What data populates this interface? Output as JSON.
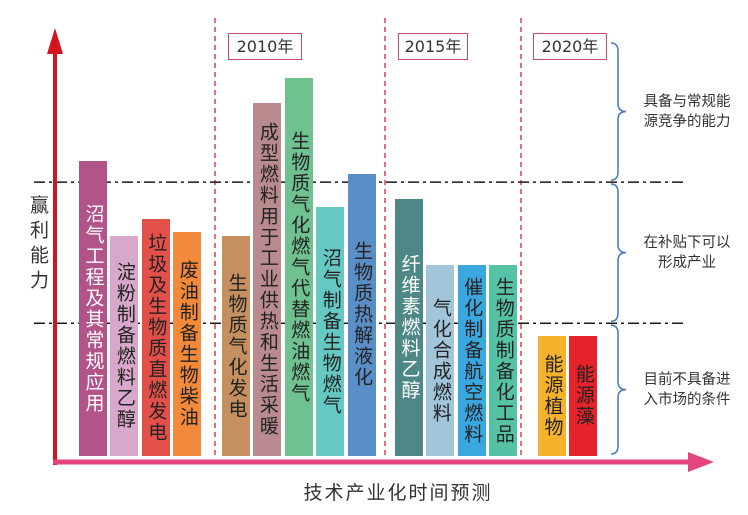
{
  "chart_data": {
    "type": "bar",
    "xlabel": "技术产业化时间预测",
    "ylabel": "赢利能力",
    "ylim": [
      0,
      1
    ],
    "grid": false,
    "periods": [
      {
        "bars": [
          {
            "label": "沼气工程及其常规应用",
            "value": 0.71,
            "color": "#b2538a",
            "label_color": "#ffffff"
          },
          {
            "label": "淀粉制备燃料乙醇",
            "value": 0.53,
            "color": "#d7a8cb",
            "label_color": "#222222"
          },
          {
            "label": "垃圾及生物质直燃发电",
            "value": 0.57,
            "color": "#e3504a",
            "label_color": "#222222"
          },
          {
            "label": "废油制备生物柴油",
            "value": 0.54,
            "color": "#f3893a",
            "label_color": "#222222"
          }
        ]
      },
      {
        "label": "2010年",
        "bars": [
          {
            "label": "生物质气化发电",
            "value": 0.53,
            "color": "#c58f60",
            "label_color": "#222222"
          },
          {
            "label": "成型燃料用于工业供热和生活采暖",
            "value": 0.85,
            "color": "#b98b8e",
            "label_color": "#222222"
          },
          {
            "label": "生物质气化燃气代替燃油燃气",
            "value": 0.91,
            "color": "#6fc18f",
            "label_color": "#222222"
          },
          {
            "label": "沼气制备生物燃气",
            "value": 0.6,
            "color": "#65c8c3",
            "label_color": "#222222"
          },
          {
            "label": "生物质热解液化",
            "value": 0.68,
            "color": "#5a8ec6",
            "label_color": "#222222"
          }
        ]
      },
      {
        "label": "2015年",
        "bars": [
          {
            "label": "纤维素燃料乙醇",
            "value": 0.62,
            "color": "#4e8886",
            "label_color": "#ffffff"
          },
          {
            "label": "气化合成燃料",
            "value": 0.46,
            "color": "#a2c5da",
            "label_color": "#222222"
          },
          {
            "label": "催化制备航空燃料",
            "value": 0.46,
            "color": "#3ba7df",
            "label_color": "#222222"
          },
          {
            "label": "生物质制备化工品",
            "value": 0.46,
            "color": "#56c2a5",
            "label_color": "#222222"
          }
        ]
      },
      {
        "label": "2020年",
        "bars": [
          {
            "label": "能源植物",
            "value": 0.29,
            "color": "#f6b22a",
            "label_color": "#222222"
          },
          {
            "label": "能源藻",
            "value": 0.29,
            "color": "#e6232a",
            "label_color": "#222222"
          }
        ]
      }
    ],
    "thresholds": [
      0.32,
      0.66
    ],
    "zones": [
      {
        "range": [
          0.66,
          1
        ],
        "lines": [
          "具备与常规能",
          "源竞争的能力"
        ]
      },
      {
        "range": [
          0.32,
          0.66
        ],
        "lines": [
          "在补贴下可以",
          "形成产业"
        ]
      },
      {
        "range": [
          0,
          0.32
        ],
        "lines": [
          "目前不具备进",
          "入市场的条件"
        ]
      }
    ]
  },
  "colors": {
    "y_axis": "#d4141c",
    "x_axis": "#e3457f",
    "period_divider": "#d5232b",
    "threshold_line": "#1a1a1a",
    "brace": "#4b7fc2",
    "year_box_border": "#c64a72"
  }
}
